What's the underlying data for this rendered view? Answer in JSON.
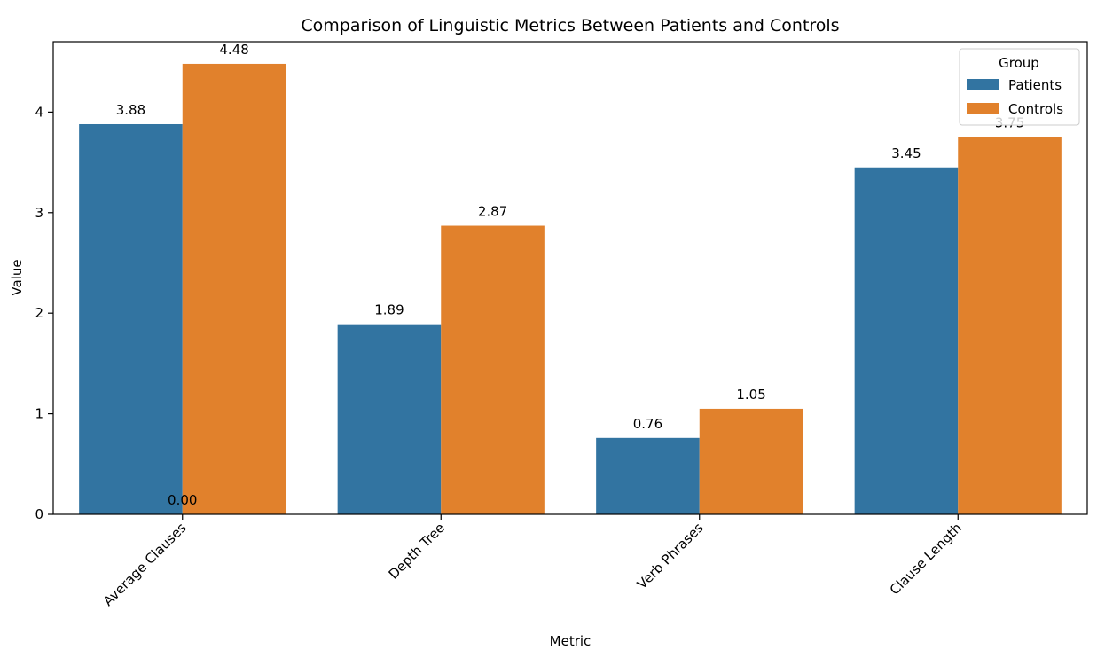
{
  "chart_data": {
    "type": "bar",
    "title": "Comparison of Linguistic Metrics Between Patients and Controls",
    "xlabel": "Metric",
    "ylabel": "Value",
    "categories": [
      "Average Clauses",
      "Depth Tree",
      "Verb Phrases",
      "Clause Length"
    ],
    "series": [
      {
        "name": "Patients",
        "color": "#3274a1",
        "values": [
          3.88,
          1.89,
          0.76,
          3.45
        ]
      },
      {
        "name": "Controls",
        "color": "#e1812c",
        "values": [
          4.48,
          2.87,
          1.05,
          3.75
        ]
      }
    ],
    "bar_labels": [
      [
        "3.88",
        "1.89",
        "0.76",
        "3.45"
      ],
      [
        "4.48",
        "2.87",
        "1.05",
        "3.75"
      ]
    ],
    "extra_annotation": "0.00",
    "ylim": [
      0,
      4.7
    ],
    "yticks": [
      0,
      1,
      2,
      3,
      4
    ],
    "legend": {
      "title": "Group",
      "position": "top-right"
    },
    "grid": false
  }
}
